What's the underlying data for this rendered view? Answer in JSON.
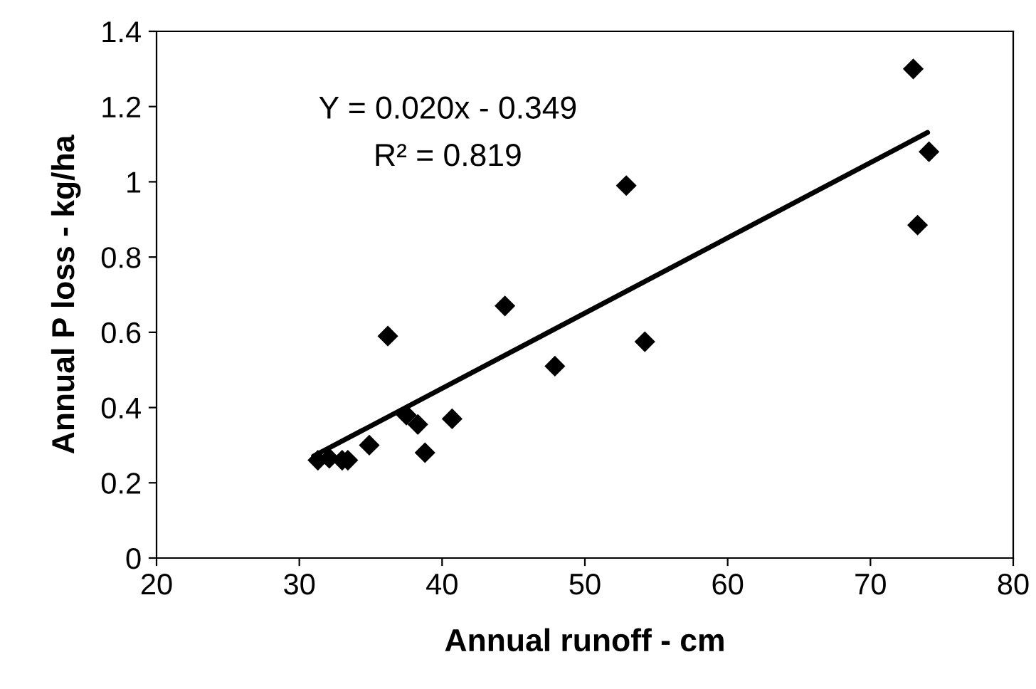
{
  "chart_data": {
    "type": "scatter",
    "xlabel": "Annual runoff - cm",
    "ylabel": "Annual P loss - kg/ha",
    "xlim": [
      20,
      80
    ],
    "xticks": [
      20,
      30,
      40,
      50,
      60,
      70,
      80
    ],
    "ylim": [
      0,
      1.4
    ],
    "yticks": [
      0,
      0.2,
      0.4,
      0.6,
      0.8,
      1,
      1.2,
      1.4
    ],
    "grid": false,
    "legend": false,
    "marker": "diamond",
    "annotations": [
      "Y = 0.020x - 0.349",
      "R² = 0.819"
    ],
    "series": [
      {
        "color": "#000000",
        "x": [
          31.3,
          32.1,
          33.0,
          33.4,
          34.9,
          36.2,
          37.5,
          38.3,
          38.8,
          40.7,
          44.4,
          47.9,
          52.9,
          54.2,
          73.0,
          73.3,
          74.1
        ],
        "values": [
          0.26,
          0.265,
          0.26,
          0.26,
          0.3,
          0.59,
          0.38,
          0.355,
          0.28,
          0.37,
          0.67,
          0.51,
          0.99,
          0.575,
          1.3,
          0.885,
          1.08
        ]
      },
      {
        "type": "line",
        "color": "#000000",
        "marker": "none",
        "line_style": "solid",
        "x": [
          31,
          74
        ],
        "values": [
          0.271,
          1.131
        ]
      }
    ]
  }
}
